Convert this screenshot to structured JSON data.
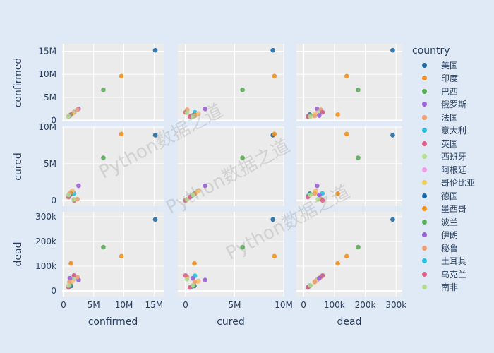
{
  "chart_data": {
    "type": "scatter",
    "subtype": "scatter-matrix",
    "dimensions": [
      "confirmed",
      "cured",
      "dead"
    ],
    "axes": {
      "confirmed": {
        "ticks": [
          0,
          5000000,
          10000000,
          15000000
        ],
        "tick_labels": [
          "0",
          "5M",
          "10M",
          "15M"
        ],
        "range": [
          -230000,
          16600000
        ]
      },
      "cured": {
        "ticks": [
          0,
          5000000,
          10000000
        ],
        "tick_labels": [
          "0",
          "5M",
          "10M"
        ],
        "range": [
          -790000,
          10000000
        ]
      },
      "dead": {
        "ticks": [
          0,
          100000,
          200000,
          300000
        ],
        "tick_labels": [
          "0",
          "100k",
          "200k",
          "300k"
        ],
        "range": [
          -23000,
          320000
        ]
      }
    },
    "grid": true,
    "legend": {
      "title": "country",
      "placement": "right"
    },
    "series": [
      {
        "name": "美国",
        "color": "#1f6aa5",
        "confirmed": 15200000,
        "cured": 8900000,
        "dead": 289000
      },
      {
        "name": "印度",
        "color": "#f0901f",
        "confirmed": 9600000,
        "cured": 9050000,
        "dead": 140000
      },
      {
        "name": "巴西",
        "color": "#5aac5a",
        "confirmed": 6600000,
        "cured": 5800000,
        "dead": 177000
      },
      {
        "name": "俄罗斯",
        "color": "#9b5fd8",
        "confirmed": 2500000,
        "cured": 2000000,
        "dead": 44000
      },
      {
        "name": "法国",
        "color": "#eda070",
        "confirmed": 2300000,
        "cured": 170000,
        "dead": 56000
      },
      {
        "name": "意大利",
        "color": "#29c0e0",
        "confirmed": 1750000,
        "cured": 950000,
        "dead": 61000
      },
      {
        "name": "英国",
        "color": "#e0608a",
        "confirmed": 1750000,
        "cured": 0,
        "dead": 62000
      },
      {
        "name": "西班牙",
        "color": "#b3dc8e",
        "confirmed": 1700000,
        "cured": 150000,
        "dead": 47000
      },
      {
        "name": "阿根廷",
        "color": "#f59ce8",
        "confirmed": 1480000,
        "cured": 1310000,
        "dead": 40000
      },
      {
        "name": "哥伦比亚",
        "color": "#f5c85c",
        "confirmed": 1380000,
        "cured": 1270000,
        "dead": 38000
      },
      {
        "name": "德国",
        "color": "#1f6aa5",
        "confirmed": 1250000,
        "cured": 900000,
        "dead": 20000
      },
      {
        "name": "墨西哥",
        "color": "#f0901f",
        "confirmed": 1230000,
        "cured": 900000,
        "dead": 111000
      },
      {
        "name": "波兰",
        "color": "#5aac5a",
        "confirmed": 1100000,
        "cured": 810000,
        "dead": 22000
      },
      {
        "name": "伊朗",
        "color": "#9b5fd8",
        "confirmed": 1060000,
        "cured": 740000,
        "dead": 51000
      },
      {
        "name": "秘鲁",
        "color": "#eda070",
        "confirmed": 980000,
        "cured": 920000,
        "dead": 36000
      },
      {
        "name": "土耳其",
        "color": "#29c0e0",
        "confirmed": 900000,
        "cured": 600000,
        "dead": 15000
      },
      {
        "name": "乌克兰",
        "color": "#e0608a",
        "confirmed": 850000,
        "cured": 450000,
        "dead": 14000
      },
      {
        "name": "南非",
        "color": "#b3dc8e",
        "confirmed": 830000,
        "cured": 750000,
        "dead": 22000
      }
    ]
  },
  "watermark": "Python数据之道"
}
